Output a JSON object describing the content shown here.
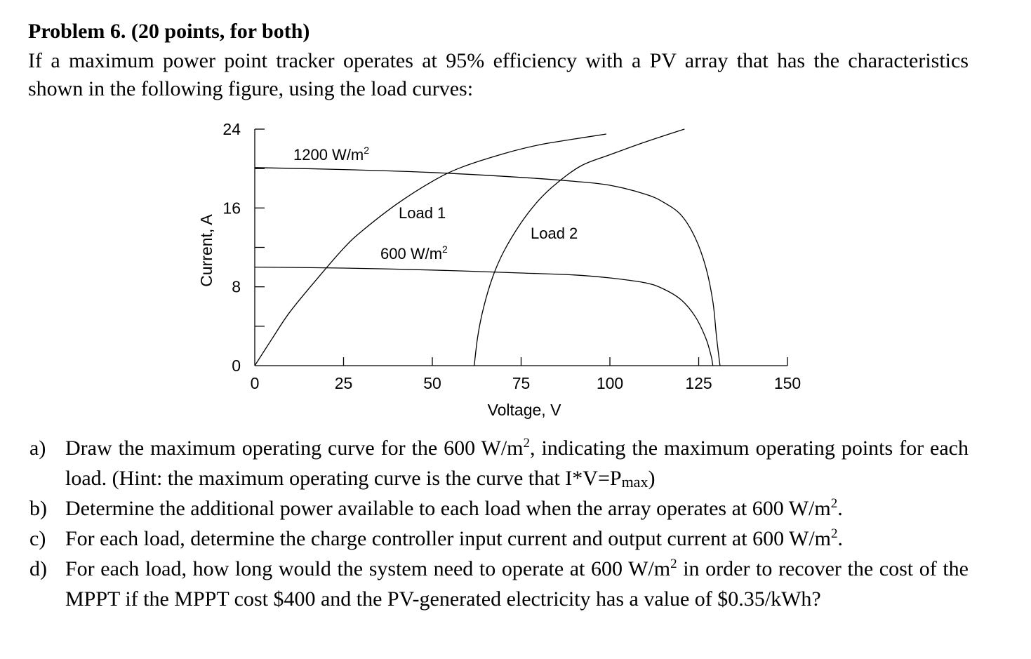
{
  "problem": {
    "title": "Problem 6. (20 points, for both)",
    "intro": "If a maximum power point tracker operates at 95% efficiency with a PV array that has the characteristics shown in the following figure, using the load curves:"
  },
  "chart_data": {
    "type": "line",
    "xlabel": "Voltage, V",
    "ylabel": "Current, A",
    "xlim": [
      0,
      150
    ],
    "ylim": [
      0,
      24
    ],
    "x_ticks": [
      0,
      25,
      50,
      75,
      100,
      125,
      150
    ],
    "y_tick_labels": [
      0,
      8,
      16,
      24
    ],
    "y_minor_ticks": [
      4,
      12,
      20
    ],
    "grid": false,
    "series": [
      {
        "name": "1200 W/m²",
        "label_main": "1200 W/m",
        "label_sup": "2",
        "x": [
          0,
          25,
          50,
          75,
          90,
          100,
          110,
          115,
          120,
          124,
          127,
          129,
          130,
          131
        ],
        "y": [
          20.1,
          19.9,
          19.6,
          19.1,
          18.7,
          18.3,
          17.4,
          16.6,
          15.3,
          13.0,
          10.0,
          6.5,
          3.0,
          0
        ]
      },
      {
        "name": "600 W/m²",
        "label_main": "600 W/m",
        "label_sup": "2",
        "x": [
          0,
          25,
          50,
          75,
          90,
          100,
          110,
          115,
          120,
          124,
          127,
          128.5,
          129
        ],
        "y": [
          10.0,
          9.9,
          9.7,
          9.4,
          9.2,
          8.9,
          8.4,
          7.8,
          6.7,
          5.0,
          2.8,
          1.0,
          0
        ]
      },
      {
        "name": "Load 1",
        "label": "Load 1",
        "x": [
          0,
          5,
          10,
          18,
          25,
          30,
          40,
          50,
          58,
          70,
          80,
          90,
          99
        ],
        "y": [
          0,
          2.8,
          5.5,
          9.0,
          11.9,
          13.6,
          16.4,
          18.7,
          20.1,
          21.5,
          22.4,
          23.0,
          23.5
        ]
      },
      {
        "name": "Load 2",
        "label": "Load 2",
        "x": [
          61.8,
          62.8,
          64.5,
          67,
          70,
          75,
          80,
          85,
          92,
          100,
          110,
          121
        ],
        "y": [
          0,
          3.0,
          6.0,
          9.0,
          11.5,
          14.5,
          16.8,
          18.5,
          20.3,
          21.4,
          22.7,
          24.0
        ]
      }
    ]
  },
  "questions": [
    {
      "letter": "a)",
      "parts": [
        "Draw the maximum operating curve for the 600 W/m",
        "2",
        ", indicating the maximum operating points for each load. (Hint: the maximum operating curve is the curve that I*V=P",
        "max",
        ")"
      ]
    },
    {
      "letter": "b)",
      "parts": [
        "Determine the additional power available to each load when the array operates at 600 W/m",
        "2",
        "."
      ]
    },
    {
      "letter": "c)",
      "parts": [
        "For each load, determine the charge controller input current and output current at 600 W/m",
        "2",
        "."
      ]
    },
    {
      "letter": "d)",
      "parts": [
        "For each load, how long would the system need to operate at 600 W/m",
        "2",
        " in order to recover the cost of the MPPT if the MPPT cost $400 and the PV-generated electricity has a value of $0.35/kWh?"
      ]
    }
  ]
}
